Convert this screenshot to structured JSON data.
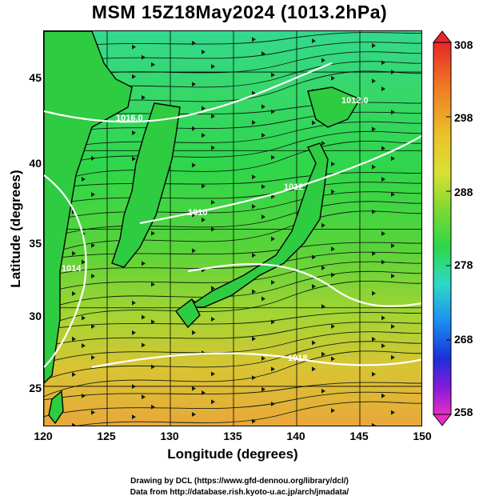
{
  "title": "MSM 15Z18May2024 (1013.2hPa)",
  "chart_data": {
    "type": "heatmap",
    "xlabel": "Longitude (degrees)",
    "ylabel": "Latitude  (degrees)",
    "xlim": [
      120,
      150
    ],
    "ylim": [
      22.4,
      47.6
    ],
    "x_ticks": [
      "120",
      "125",
      "130",
      "135",
      "140",
      "145",
      "150"
    ],
    "y_ticks": [
      "25",
      "30",
      "35",
      "40",
      "45"
    ],
    "colorbar": {
      "min": 258,
      "max": 308,
      "ticks": [
        "308",
        "298",
        "288",
        "278",
        "268",
        "258"
      ]
    },
    "contour_labels": [
      "1016.0",
      "1012",
      "1014",
      "1010",
      "1012.0",
      "1018"
    ],
    "grid": true
  },
  "footer": {
    "line1": "Drawing by DCL (https://www.gfd-dennou.org/library/dcl/)",
    "line2": "Data from http://database.rish.kyoto-u.ac.jp/arch/jmadata/"
  },
  "colors": {
    "land_outline": "#000000",
    "contour": "#ffffff",
    "grid": "#000000",
    "warm": "#e8b03a",
    "cool": "#2ddc4a",
    "cold": "#37d9a0"
  }
}
